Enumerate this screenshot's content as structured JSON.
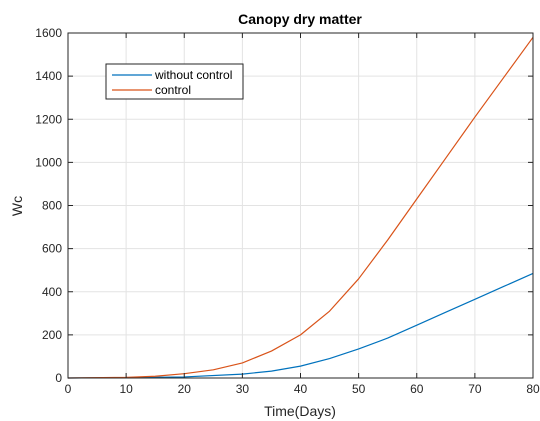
{
  "chart_data": {
    "type": "line",
    "title": "Canopy dry matter",
    "xlabel": "Time(Days)",
    "ylabel": "Wc",
    "xlim": [
      0,
      80
    ],
    "ylim": [
      0,
      1600
    ],
    "xticks": [
      0,
      10,
      20,
      30,
      40,
      50,
      60,
      70,
      80
    ],
    "yticks": [
      0,
      200,
      400,
      600,
      800,
      1000,
      1200,
      1400,
      1600
    ],
    "grid": true,
    "legend_position": "top-left",
    "series": [
      {
        "name": "without control",
        "color": "#0072BD",
        "x": [
          0,
          10,
          20,
          30,
          35,
          40,
          45,
          50,
          55,
          60,
          65,
          70,
          75,
          80
        ],
        "y": [
          0,
          2,
          5,
          18,
          32,
          55,
          90,
          135,
          185,
          245,
          305,
          365,
          425,
          485
        ]
      },
      {
        "name": "control",
        "color": "#D95319",
        "x": [
          0,
          10,
          15,
          20,
          25,
          30,
          35,
          40,
          45,
          50,
          55,
          60,
          65,
          70,
          75,
          80
        ],
        "y": [
          0,
          3,
          8,
          20,
          38,
          70,
          125,
          200,
          310,
          460,
          640,
          830,
          1020,
          1210,
          1395,
          1580
        ]
      }
    ]
  }
}
